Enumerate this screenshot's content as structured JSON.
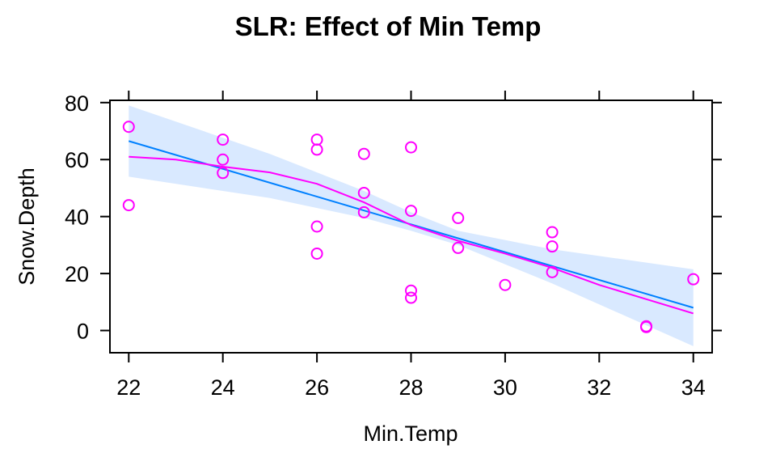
{
  "chart_data": {
    "type": "scatter",
    "title": "SLR: Effect of Min Temp",
    "xlabel": "Min.Temp",
    "ylabel": "Snow.Depth",
    "xlim": [
      21.6,
      34.4
    ],
    "ylim": [
      -7.8,
      80.8
    ],
    "x_ticks": [
      22,
      24,
      26,
      28,
      30,
      32,
      34
    ],
    "y_ticks": [
      0,
      20,
      40,
      60,
      80
    ],
    "grid": false,
    "legend": "none",
    "colors": {
      "points": "#ff00ff",
      "smoother": "#ff00ff",
      "fit_line": "#0080ff",
      "confidence_band": "#d9e9ff"
    },
    "points": [
      {
        "x": 22,
        "y": 71.5
      },
      {
        "x": 22,
        "y": 44
      },
      {
        "x": 24,
        "y": 67
      },
      {
        "x": 24,
        "y": 60
      },
      {
        "x": 24,
        "y": 55.3
      },
      {
        "x": 26,
        "y": 67
      },
      {
        "x": 26,
        "y": 63.5
      },
      {
        "x": 26,
        "y": 36.5
      },
      {
        "x": 26,
        "y": 27
      },
      {
        "x": 27,
        "y": 62
      },
      {
        "x": 27,
        "y": 48.3
      },
      {
        "x": 27,
        "y": 41.5
      },
      {
        "x": 28,
        "y": 64.3
      },
      {
        "x": 28,
        "y": 42
      },
      {
        "x": 28,
        "y": 14
      },
      {
        "x": 28,
        "y": 11.5
      },
      {
        "x": 29,
        "y": 39.5
      },
      {
        "x": 29,
        "y": 29
      },
      {
        "x": 30,
        "y": 16
      },
      {
        "x": 31,
        "y": 34.5
      },
      {
        "x": 31,
        "y": 29.5
      },
      {
        "x": 31,
        "y": 20.5
      },
      {
        "x": 33,
        "y": 1.5
      },
      {
        "x": 33,
        "y": 1.2
      },
      {
        "x": 34,
        "y": 18
      }
    ],
    "fit_line": {
      "x": [
        22,
        34
      ],
      "y": [
        66.5,
        8
      ]
    },
    "confidence_band": {
      "x": [
        22,
        25,
        27,
        28,
        29,
        31,
        34
      ],
      "upper": [
        79,
        62,
        49,
        41.5,
        35,
        28.5,
        21.5
      ],
      "lower": [
        54,
        46.5,
        39.5,
        35,
        30,
        16.5,
        -5.5
      ]
    },
    "smoother": {
      "x": [
        22,
        23,
        24,
        25,
        26,
        27,
        28,
        29,
        30,
        31,
        32,
        33,
        34
      ],
      "y": [
        61,
        60,
        57.5,
        55.5,
        51.5,
        45,
        37,
        31.5,
        27,
        22,
        16,
        11,
        6
      ]
    }
  }
}
